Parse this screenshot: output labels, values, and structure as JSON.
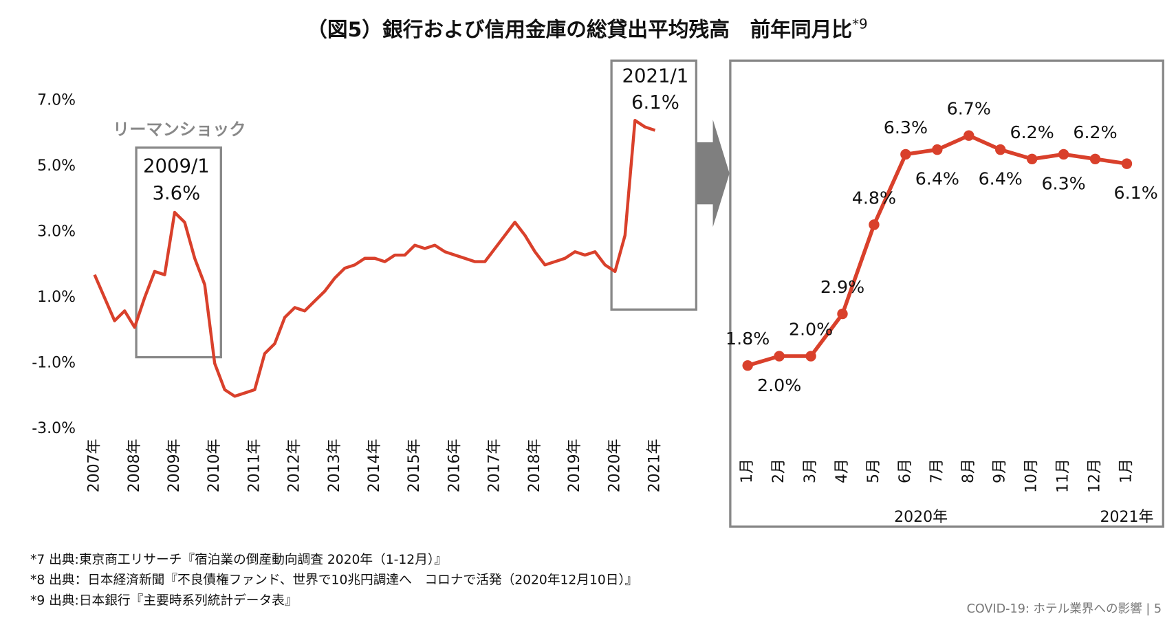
{
  "title": "（図5）銀行および信用金庫の総貸出平均残高　前年同月比",
  "title_note": "*9",
  "chart_data": [
    {
      "type": "line",
      "color": "#d9402b",
      "year_labels": [
        "2007年",
        "2008年",
        "2009年",
        "2010年",
        "2011年",
        "2012年",
        "2013年",
        "2014年",
        "2015年",
        "2016年",
        "2017年",
        "2018年",
        "2019年",
        "2020年",
        "2021年"
      ],
      "values": [
        1.7,
        1.0,
        0.3,
        0.6,
        0.1,
        1.0,
        1.8,
        1.7,
        3.6,
        3.3,
        2.2,
        1.4,
        -1.0,
        -1.8,
        -2.0,
        -1.9,
        -1.8,
        -0.7,
        -0.4,
        0.4,
        0.7,
        0.6,
        0.9,
        1.2,
        1.6,
        1.9,
        2.0,
        2.2,
        2.2,
        2.1,
        2.3,
        2.3,
        2.6,
        2.5,
        2.6,
        2.4,
        2.3,
        2.2,
        2.1,
        2.1,
        2.5,
        2.9,
        3.3,
        2.9,
        2.4,
        2.0,
        2.1,
        2.2,
        2.4,
        2.3,
        2.4,
        2.0,
        1.8,
        2.9,
        6.4,
        6.2,
        6.1
      ],
      "ylim": [
        -3,
        7
      ],
      "yticks": [
        {
          "value": 7,
          "label": "7.0%"
        },
        {
          "value": 5,
          "label": "5.0%"
        },
        {
          "value": 3,
          "label": "3.0%"
        },
        {
          "value": 1,
          "label": "1.0%"
        },
        {
          "value": -1,
          "label": "-1.0%"
        },
        {
          "value": -3,
          "label": "-3.0%"
        }
      ],
      "annotations": [
        "リーマンショック",
        "2009/1",
        "3.6%",
        "2021/1",
        "6.1%"
      ]
    },
    {
      "type": "line",
      "color": "#d9402b",
      "categories": [
        "1月",
        "2月",
        "3月",
        "4月",
        "5月",
        "6月",
        "7月",
        "8月",
        "9月",
        "10月",
        "11月",
        "12月",
        "1月"
      ],
      "values": [
        1.8,
        2.0,
        2.0,
        2.9,
        4.8,
        6.3,
        6.4,
        6.7,
        6.4,
        6.2,
        6.3,
        6.2,
        6.1
      ],
      "value_labels": [
        "1.8%",
        "2.0%",
        "2.0%",
        "2.9%",
        "4.8%",
        "6.3%",
        "6.4%",
        "6.7%",
        "6.4%",
        "6.2%",
        "6.3%",
        "6.2%",
        "6.1%"
      ],
      "groups": [
        "2020年",
        "2021年"
      ]
    }
  ],
  "notes": [
    "*7 出典:東京商工リサーチ『宿泊業の倒産動向調査 2020年（1-12月）』",
    "*8 出典：日本経済新聞『不良債権ファンド、世界で10兆円調達へ　コロナで活発（2020年12月10日）』",
    "*9 出典:日本銀行『主要時系列統計データ表』"
  ],
  "footer": "COVID-19: ホテル業界への影響 | 5"
}
